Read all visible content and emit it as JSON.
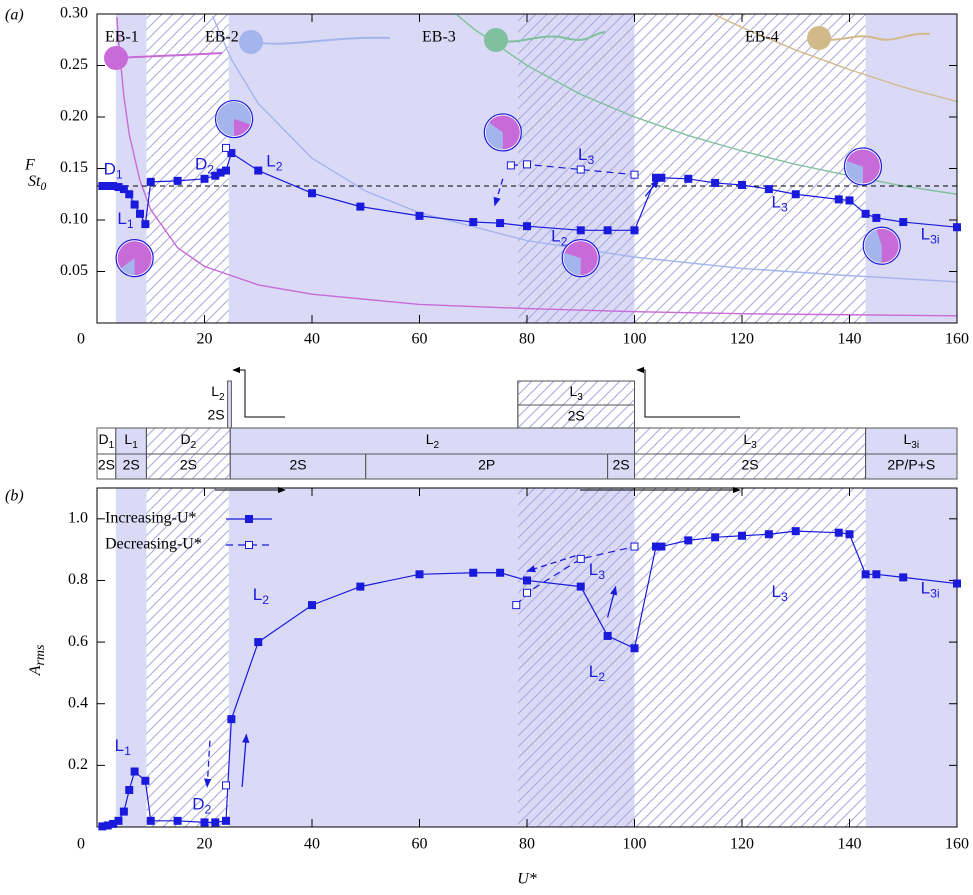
{
  "chart_data": [
    {
      "type": "line",
      "panel_label": "(a)",
      "ylabel": "F",
      "xlim": [
        0,
        160
      ],
      "ylim": [
        0,
        0.3
      ],
      "xticks": [
        0,
        20,
        40,
        60,
        80,
        100,
        120,
        140,
        160
      ],
      "yticks": [
        0.05,
        {
          "value": 0.1,
          "label": "0.10"
        },
        0.15,
        {
          "value": 0.2,
          "label": "0.20"
        },
        0.25,
        {
          "value": 0.3,
          "label": "0.30"
        }
      ],
      "reference_line": {
        "value": 0.133,
        "label": "St",
        "label_sub": "0"
      },
      "regions": [
        {
          "from": 3.5,
          "to": 9.2,
          "style": "blue"
        },
        {
          "from": 9.2,
          "to": 24.5,
          "style": "hatched"
        },
        {
          "from": 24.5,
          "to": 78.3,
          "style": "blue"
        },
        {
          "from": 78.3,
          "to": 100,
          "style": "blue-hatched"
        },
        {
          "from": 100,
          "to": 143,
          "style": "hatched"
        },
        {
          "from": 143,
          "to": 160,
          "style": "blue"
        }
      ],
      "curves": [
        {
          "name": "EB-1",
          "color": "#c86ad8",
          "x": [
            3.7,
            4,
            5,
            6,
            8,
            10,
            15,
            20,
            30,
            40,
            60,
            80,
            100,
            120,
            140,
            160
          ],
          "values": [
            0.297,
            0.275,
            0.22,
            0.183,
            0.138,
            0.11,
            0.073,
            0.055,
            0.037,
            0.028,
            0.018,
            0.014,
            0.011,
            0.009,
            0.008,
            0.007
          ]
        },
        {
          "name": "EB-2",
          "color": "#a4b4ec",
          "x": [
            21.5,
            25,
            30,
            40,
            50,
            60,
            80,
            100,
            120,
            140,
            160
          ],
          "values": [
            0.298,
            0.256,
            0.213,
            0.16,
            0.128,
            0.107,
            0.08,
            0.064,
            0.053,
            0.046,
            0.04
          ]
        },
        {
          "name": "EB-3",
          "color": "#80c09c",
          "x": [
            67,
            70,
            80,
            90,
            100,
            110,
            120,
            130,
            140,
            150,
            160
          ],
          "values": [
            0.299,
            0.286,
            0.25,
            0.222,
            0.2,
            0.182,
            0.167,
            0.154,
            0.143,
            0.133,
            0.125
          ]
        },
        {
          "name": "EB-4",
          "color": "#d2b98a",
          "x": [
            115,
            120,
            130,
            140,
            150,
            160
          ],
          "values": [
            0.299,
            0.287,
            0.265,
            0.246,
            0.229,
            0.215
          ]
        }
      ],
      "series": [
        {
          "color": "#1a1adc",
          "line_style": "solid",
          "marker": "filled",
          "x": [
            1,
            2,
            3,
            4,
            5,
            6,
            7,
            8,
            9,
            10,
            15,
            20,
            22,
            23,
            24,
            25,
            30,
            40,
            49,
            60,
            70,
            75,
            80,
            90,
            95,
            100,
            104,
            105,
            110,
            115,
            120,
            125,
            130,
            138,
            140,
            143,
            145,
            150,
            160
          ],
          "values": [
            0.133,
            0.133,
            0.133,
            0.132,
            0.13,
            0.125,
            0.115,
            0.106,
            0.096,
            0.137,
            0.138,
            0.14,
            0.143,
            0.146,
            0.148,
            0.165,
            0.148,
            0.126,
            0.113,
            0.104,
            0.098,
            0.097,
            0.094,
            0.09,
            0.09,
            0.09,
            0.141,
            0.141,
            0.14,
            0.136,
            0.134,
            0.13,
            0.125,
            0.12,
            0.119,
            0.106,
            0.102,
            0.098,
            0.093
          ]
        },
        {
          "color": "#1a1adc",
          "line_style": "dashed",
          "marker": "open",
          "x": [
            24,
            null,
            77,
            80,
            90,
            100
          ],
          "values": [
            0.17,
            null,
            0.153,
            0.154,
            0.149,
            0.144
          ]
        }
      ],
      "annotations": [
        {
          "text": "D",
          "sub": "1"
        },
        {
          "text": "L",
          "sub": "1"
        },
        {
          "text": "D",
          "sub": "2"
        },
        {
          "text": "L",
          "sub": "2"
        },
        {
          "text": "L",
          "sub": "3"
        },
        {
          "text": "L",
          "sub": "2"
        },
        {
          "text": "L",
          "sub": "3"
        },
        {
          "text": "L",
          "sub": "3i"
        }
      ]
    },
    {
      "type": "regime-map",
      "xlim": [
        0,
        160
      ],
      "rows": [
        [
          {
            "from": 0,
            "to": 3.5,
            "text": "D",
            "sub": "1",
            "style": "plain"
          },
          {
            "from": 3.5,
            "to": 9.2,
            "text": "L",
            "sub": "1",
            "style": "blue"
          },
          {
            "from": 9.2,
            "to": 24.8,
            "text": "D",
            "sub": "2",
            "style": "hatched"
          },
          {
            "from": 24.8,
            "to": 100,
            "text": "L",
            "sub": "2",
            "style": "blue"
          },
          {
            "from": 100,
            "to": 143,
            "text": "L",
            "sub": "3",
            "style": "hatched"
          },
          {
            "from": 143,
            "to": 160,
            "text": "L",
            "sub": "3i",
            "style": "blue"
          }
        ],
        [
          {
            "from": 0,
            "to": 3.5,
            "text": "2S",
            "style": "plain"
          },
          {
            "from": 3.5,
            "to": 9.2,
            "text": "2S",
            "style": "blue"
          },
          {
            "from": 9.2,
            "to": 24.8,
            "text": "2S",
            "style": "hatched"
          },
          {
            "from": 24.8,
            "to": 50,
            "text": "2S",
            "style": "blue"
          },
          {
            "from": 50,
            "to": 95,
            "text": "2P",
            "style": "blue"
          },
          {
            "from": 95,
            "to": 100,
            "text": "2S",
            "style": "blue"
          },
          {
            "from": 100,
            "to": 143,
            "text": "2S",
            "style": "hatched"
          },
          {
            "from": 143,
            "to": 160,
            "text": "2P/P+S",
            "style": "blue"
          }
        ]
      ],
      "insets": [
        {
          "from": 24.3,
          "to": 25,
          "text": "L",
          "sub": "2",
          "mode": "2S",
          "style": "blue"
        },
        {
          "from": 78.3,
          "to": 100,
          "text": "L",
          "sub": "3",
          "mode": "2S",
          "style": "hatched"
        }
      ]
    },
    {
      "type": "line",
      "panel_label": "(b)",
      "xlabel": "U*",
      "ylabel": "A",
      "ylabel_sub": "rms",
      "xlim": [
        0,
        160
      ],
      "ylim": [
        0,
        1.1
      ],
      "xticks": [
        0,
        20,
        40,
        60,
        80,
        100,
        120,
        140,
        160
      ],
      "yticks": [
        0.2,
        0.4,
        0.6,
        0.8,
        {
          "value": 1,
          "label": "1.0"
        }
      ],
      "regions": [
        {
          "from": 3.5,
          "to": 9.2,
          "style": "blue"
        },
        {
          "from": 9.2,
          "to": 24.5,
          "style": "hatched"
        },
        {
          "from": 24.5,
          "to": 78.3,
          "style": "blue"
        },
        {
          "from": 78.3,
          "to": 100,
          "style": "blue-hatched"
        },
        {
          "from": 100,
          "to": 143,
          "style": "hatched"
        },
        {
          "from": 143,
          "to": 160,
          "style": "blue"
        }
      ],
      "series": [
        {
          "name": "Increasing-U*",
          "color": "#1a1adc",
          "line_style": "solid",
          "marker": "filled",
          "x": [
            1,
            2,
            3,
            4,
            5,
            6,
            7,
            9,
            10,
            15,
            20,
            22,
            24,
            25,
            30,
            40,
            49,
            60,
            70,
            75,
            80,
            90,
            95,
            100,
            104,
            105,
            110,
            115,
            120,
            125,
            130,
            138,
            140,
            143,
            145,
            150,
            160
          ],
          "values": [
            0.002,
            0.005,
            0.01,
            0.02,
            0.05,
            0.12,
            0.18,
            0.15,
            0.02,
            0.02,
            0.015,
            0.015,
            0.02,
            0.35,
            0.6,
            0.72,
            0.78,
            0.82,
            0.825,
            0.825,
            0.8,
            0.78,
            0.62,
            0.58,
            0.91,
            0.91,
            0.93,
            0.94,
            0.945,
            0.95,
            0.96,
            0.955,
            0.95,
            0.82,
            0.82,
            0.81,
            0.79
          ]
        },
        {
          "name": "Decreasing-U*",
          "color": "#1a1adc",
          "line_style": "dashed",
          "marker": "open",
          "x": [
            24,
            null,
            78,
            80,
            90,
            100
          ],
          "values": [
            0.135,
            null,
            0.72,
            0.76,
            0.87,
            0.91
          ]
        }
      ],
      "annotations": [
        {
          "text": "L",
          "sub": "1"
        },
        {
          "text": "D",
          "sub": "2"
        },
        {
          "text": "L",
          "sub": "2"
        },
        {
          "text": "L",
          "sub": "2"
        },
        {
          "text": "L",
          "sub": "3"
        },
        {
          "text": "L",
          "sub": "3"
        },
        {
          "text": "L",
          "sub": "3i"
        }
      ]
    }
  ]
}
